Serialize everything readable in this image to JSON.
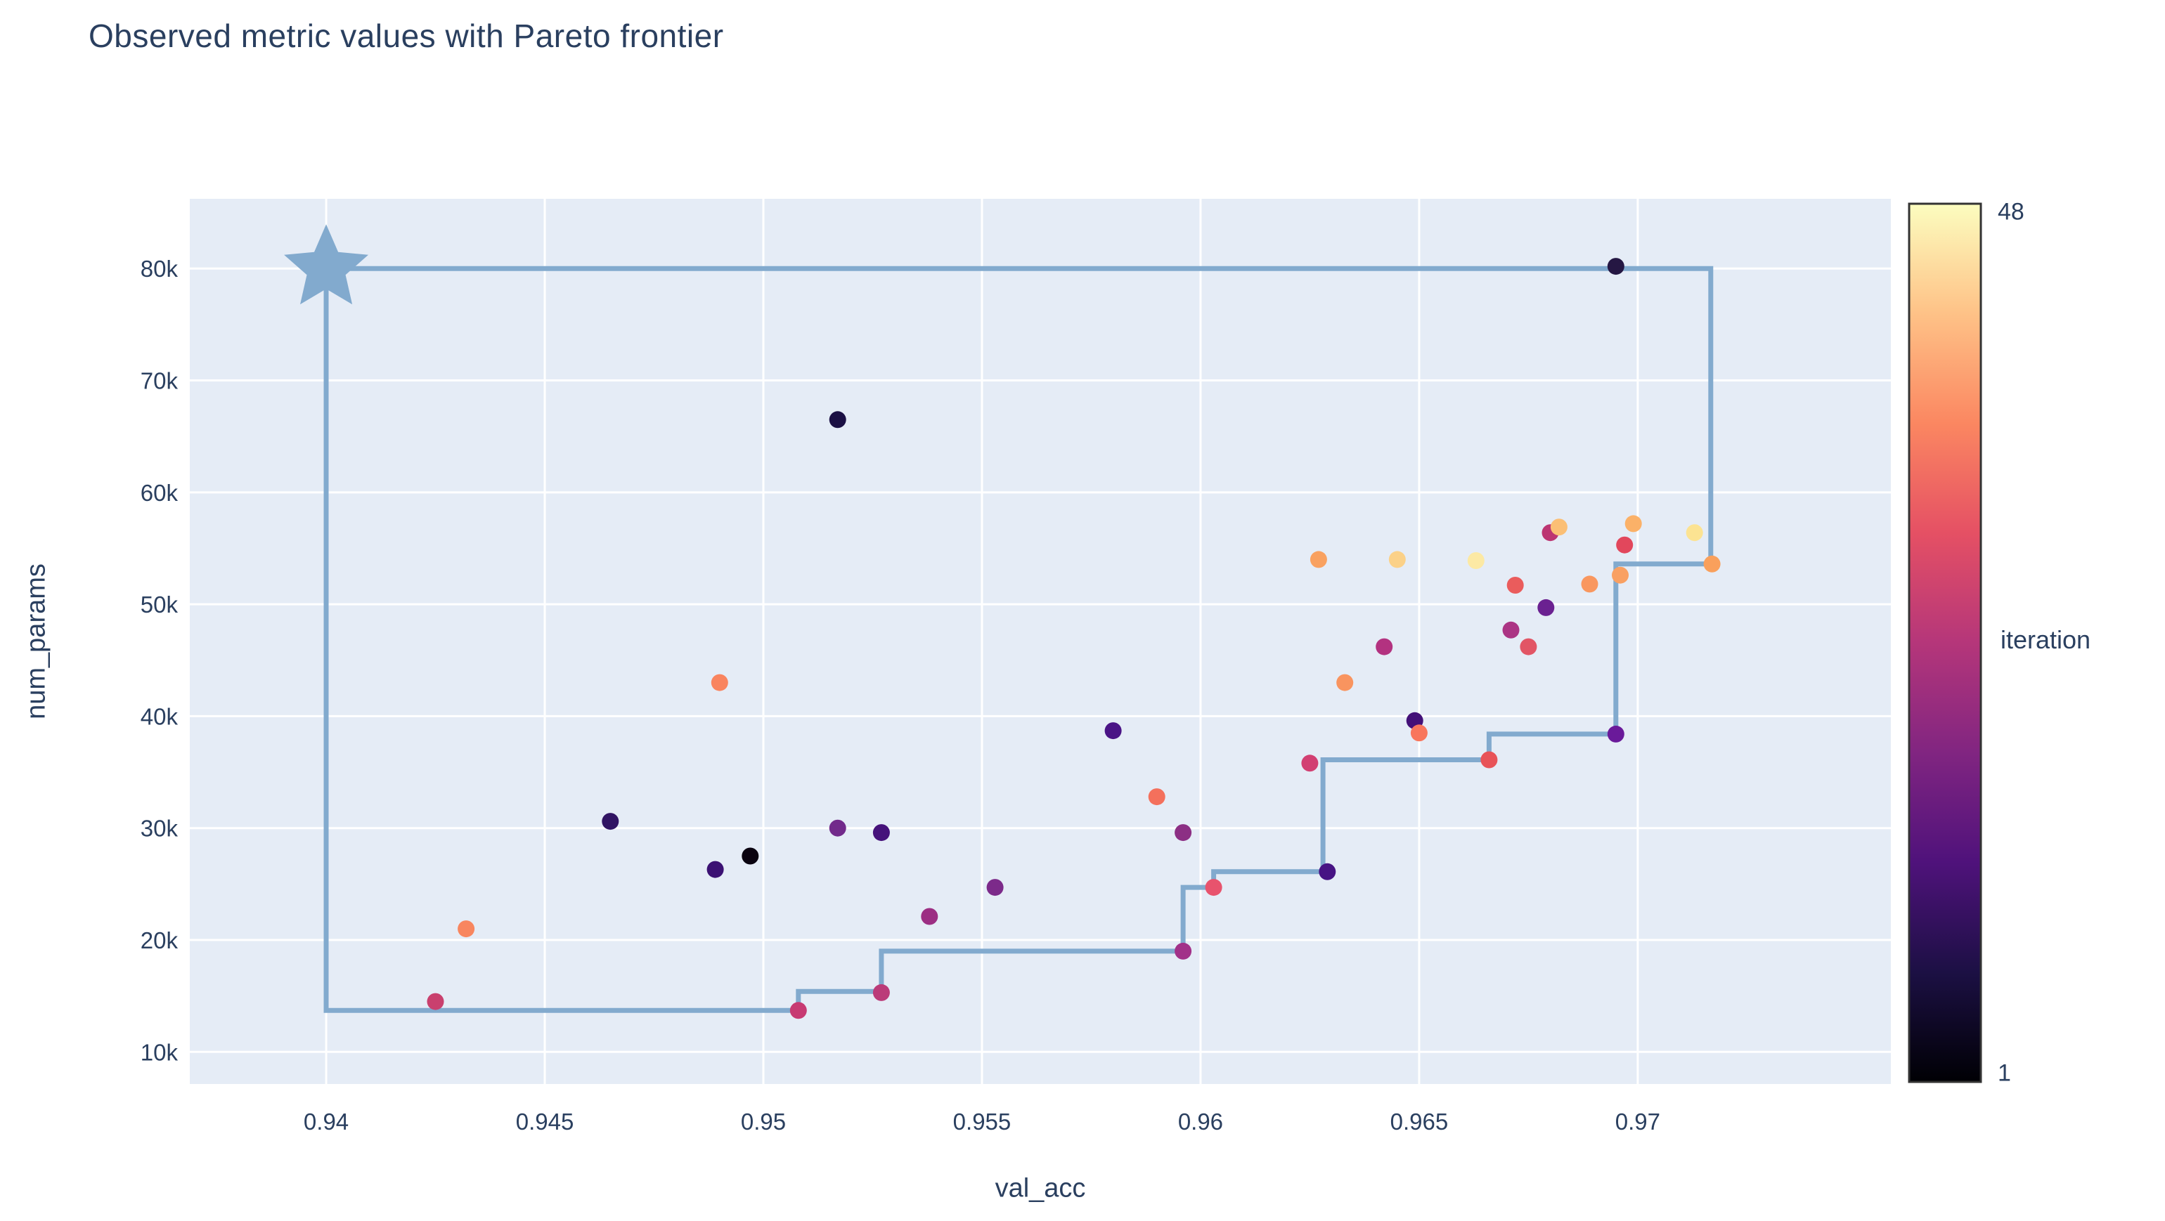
{
  "title": "Observed metric values with Pareto frontier",
  "x_axis": {
    "label": "val_acc"
  },
  "y_axis": {
    "label": "num_params"
  },
  "colorbar": {
    "title": "iteration",
    "max_label": "48",
    "min_label": "1",
    "outline_color": "#333333",
    "colormap": "magma",
    "gradient_stops": [
      "#000004",
      "#1c1044",
      "#4f127b",
      "#812581",
      "#b5367a",
      "#e55064",
      "#fb8761",
      "#fec287",
      "#fcfdbf"
    ]
  },
  "colors": {
    "plot_background": "#e5ecf6",
    "gridline": "#ffffff",
    "text": "#2a3f5f",
    "frontier": "#82aace"
  },
  "chart_data": {
    "type": "scatter",
    "title": "Observed metric values with Pareto frontier",
    "xlabel": "val_acc",
    "ylabel": "num_params",
    "x_range": [
      0.93688,
      0.97579
    ],
    "y_range": [
      7130,
      86230
    ],
    "grid": true,
    "legend_position": "none",
    "x_ticks": [
      {
        "value": 0.94,
        "label": "0.94"
      },
      {
        "value": 0.945,
        "label": "0.945"
      },
      {
        "value": 0.95,
        "label": "0.95"
      },
      {
        "value": 0.955,
        "label": "0.955"
      },
      {
        "value": 0.96,
        "label": "0.96"
      },
      {
        "value": 0.965,
        "label": "0.965"
      },
      {
        "value": 0.97,
        "label": "0.97"
      }
    ],
    "y_ticks": [
      {
        "value": 10000,
        "label": "10k"
      },
      {
        "value": 20000,
        "label": "20k"
      },
      {
        "value": 30000,
        "label": "30k"
      },
      {
        "value": 40000,
        "label": "40k"
      },
      {
        "value": 50000,
        "label": "50k"
      },
      {
        "value": 60000,
        "label": "60k"
      },
      {
        "value": 70000,
        "label": "70k"
      },
      {
        "value": 80000,
        "label": "80k"
      }
    ],
    "iteration_scale": {
      "min": 1,
      "max": 48
    },
    "points": [
      {
        "val_acc": 0.9425,
        "num_params": 14500,
        "iteration": 28,
        "color": "#c9406e"
      },
      {
        "val_acc": 0.9432,
        "num_params": 21000,
        "iteration": 37,
        "color": "#f8865f"
      },
      {
        "val_acc": 0.9465,
        "num_params": 30600,
        "iteration": 9,
        "color": "#311463"
      },
      {
        "val_acc": 0.9489,
        "num_params": 26300,
        "iteration": 11,
        "color": "#3b1173"
      },
      {
        "val_acc": 0.949,
        "num_params": 43000,
        "iteration": 37,
        "color": "#f9845f"
      },
      {
        "val_acc": 0.9497,
        "num_params": 27500,
        "iteration": 1,
        "color": "#0a0310"
      },
      {
        "val_acc": 0.9508,
        "num_params": 13700,
        "iteration": 28,
        "color": "#c73a72"
      },
      {
        "val_acc": 0.9517,
        "num_params": 66500,
        "iteration": 7,
        "color": "#1b1044"
      },
      {
        "val_acc": 0.9517,
        "num_params": 30000,
        "iteration": 17,
        "color": "#722a8b"
      },
      {
        "val_acc": 0.9527,
        "num_params": 29600,
        "iteration": 12,
        "color": "#46127b"
      },
      {
        "val_acc": 0.9527,
        "num_params": 15300,
        "iteration": 26,
        "color": "#bb3b79"
      },
      {
        "val_acc": 0.9538,
        "num_params": 22100,
        "iteration": 22,
        "color": "#9c2e83"
      },
      {
        "val_acc": 0.9553,
        "num_params": 24700,
        "iteration": 18,
        "color": "#7c2a8a"
      },
      {
        "val_acc": 0.958,
        "num_params": 38700,
        "iteration": 12,
        "color": "#4a1486"
      },
      {
        "val_acc": 0.959,
        "num_params": 32800,
        "iteration": 36,
        "color": "#f4705c"
      },
      {
        "val_acc": 0.9596,
        "num_params": 29600,
        "iteration": 20,
        "color": "#8c2f84"
      },
      {
        "val_acc": 0.9596,
        "num_params": 19000,
        "iteration": 23,
        "color": "#a23189"
      },
      {
        "val_acc": 0.9603,
        "num_params": 24700,
        "iteration": 32,
        "color": "#e8536d"
      },
      {
        "val_acc": 0.9625,
        "num_params": 35800,
        "iteration": 29,
        "color": "#d23f72"
      },
      {
        "val_acc": 0.9627,
        "num_params": 54000,
        "iteration": 40,
        "color": "#f9a160"
      },
      {
        "val_acc": 0.9629,
        "num_params": 26100,
        "iteration": 12,
        "color": "#471384"
      },
      {
        "val_acc": 0.9633,
        "num_params": 43000,
        "iteration": 39,
        "color": "#f9945f"
      },
      {
        "val_acc": 0.9642,
        "num_params": 46200,
        "iteration": 25,
        "color": "#b33280"
      },
      {
        "val_acc": 0.9645,
        "num_params": 54000,
        "iteration": 44,
        "color": "#fbd188"
      },
      {
        "val_acc": 0.9649,
        "num_params": 39600,
        "iteration": 11,
        "color": "#431078"
      },
      {
        "val_acc": 0.965,
        "num_params": 38500,
        "iteration": 36,
        "color": "#f8765c"
      },
      {
        "val_acc": 0.9663,
        "num_params": 53900,
        "iteration": 46,
        "color": "#fce9a4"
      },
      {
        "val_acc": 0.9666,
        "num_params": 36100,
        "iteration": 33,
        "color": "#e85358"
      },
      {
        "val_acc": 0.9671,
        "num_params": 47700,
        "iteration": 24,
        "color": "#ab3484"
      },
      {
        "val_acc": 0.9672,
        "num_params": 51700,
        "iteration": 34,
        "color": "#ea5c5c"
      },
      {
        "val_acc": 0.9675,
        "num_params": 46200,
        "iteration": 33,
        "color": "#e25565"
      },
      {
        "val_acc": 0.9679,
        "num_params": 49700,
        "iteration": 16,
        "color": "#6b2191"
      },
      {
        "val_acc": 0.968,
        "num_params": 56400,
        "iteration": 26,
        "color": "#bc3572"
      },
      {
        "val_acc": 0.9682,
        "num_params": 56900,
        "iteration": 42,
        "color": "#fbbf75"
      },
      {
        "val_acc": 0.9689,
        "num_params": 51800,
        "iteration": 39,
        "color": "#f9975f"
      },
      {
        "val_acc": 0.9695,
        "num_params": 80200,
        "iteration": 8,
        "color": "#251743"
      },
      {
        "val_acc": 0.9695,
        "num_params": 38400,
        "iteration": 16,
        "color": "#6a1a9a"
      },
      {
        "val_acc": 0.9696,
        "num_params": 52600,
        "iteration": 40,
        "color": "#f9a062"
      },
      {
        "val_acc": 0.9697,
        "num_params": 55300,
        "iteration": 32,
        "color": "#e2475c"
      },
      {
        "val_acc": 0.9699,
        "num_params": 57200,
        "iteration": 41,
        "color": "#fbb168"
      },
      {
        "val_acc": 0.9713,
        "num_params": 56400,
        "iteration": 45,
        "color": "#fce392"
      },
      {
        "val_acc": 0.9717,
        "num_params": 53600,
        "iteration": 40,
        "color": "#f9a05c"
      }
    ],
    "pareto_frontier": {
      "color": "#82aace",
      "line_width": 7,
      "star": {
        "val_acc": 0.94,
        "num_params": 80000
      },
      "vertices": [
        [
          0.94,
          80000
        ],
        [
          0.97167,
          80000
        ],
        [
          0.97167,
          53600
        ],
        [
          0.9695,
          53600
        ],
        [
          0.9695,
          38400
        ],
        [
          0.9666,
          38400
        ],
        [
          0.9666,
          36100
        ],
        [
          0.9628,
          36100
        ],
        [
          0.9628,
          26100
        ],
        [
          0.9603,
          26100
        ],
        [
          0.9603,
          24700
        ],
        [
          0.9596,
          24700
        ],
        [
          0.9596,
          19000
        ],
        [
          0.9527,
          19000
        ],
        [
          0.9527,
          15400
        ],
        [
          0.9508,
          15400
        ],
        [
          0.9508,
          13700
        ],
        [
          0.94,
          13700
        ],
        [
          0.94,
          80000
        ]
      ]
    }
  }
}
